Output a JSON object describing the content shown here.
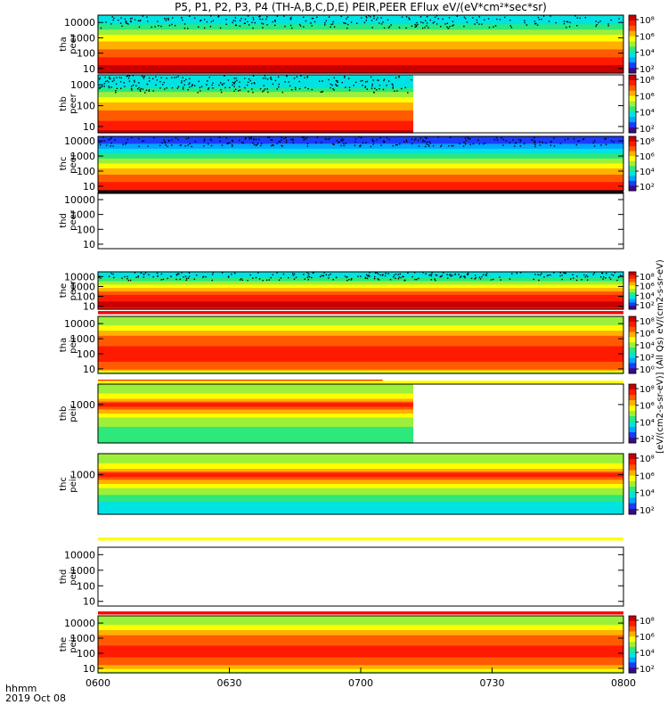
{
  "title": "P5, P1, P2, P3, P4 (TH-A,B,C,D,E) PEIR,PEER EFlux eV/(eV*cm²*sec*sr)",
  "footer": {
    "time_format": "hhmm",
    "date": "2019 Oct 08"
  },
  "colorbar_label": "[eV/(cm2-s-sr-eV)] (All Qs) eV/(cm2-s-sr-eV)",
  "colormap": [
    "#3b0a8a",
    "#1a3cff",
    "#00a6ff",
    "#00e3e3",
    "#2de87a",
    "#9cf03a",
    "#ffff00",
    "#ffb000",
    "#ff5a00",
    "#ff1a00",
    "#c80000"
  ],
  "chart_data": [
    {
      "type": "heatmap",
      "panel": "tha-peer",
      "ylabel": [
        "tha",
        "peer"
      ],
      "x_range": [
        "0600",
        "0800"
      ],
      "ylim": [
        5,
        30000
      ],
      "yscale": "log",
      "data_end": "0800",
      "yticks": [
        "10000",
        "1000",
        "100",
        "10"
      ],
      "cbar_ticks": [
        "10^8",
        "10^6",
        "10^4",
        "10^2"
      ],
      "color_by_level": [
        [
          "10000",
          3
        ],
        [
          "1000",
          6
        ],
        [
          "100",
          8
        ],
        [
          "10",
          10
        ],
        [
          "5",
          10
        ]
      ]
    },
    {
      "type": "heatmap",
      "panel": "thb-peer",
      "ylabel": [
        "thb",
        "peer"
      ],
      "x_range": [
        "0600",
        "0800"
      ],
      "ylim": [
        5,
        3000
      ],
      "yscale": "log",
      "data_end": "0712",
      "yticks": [
        "1000",
        "100",
        "10"
      ],
      "cbar_ticks": [
        "10^8",
        "10^6",
        "10^4",
        "10^2"
      ],
      "color_by_level": [
        [
          "1000",
          3
        ],
        [
          "100",
          7
        ],
        [
          "10",
          9
        ],
        [
          "5",
          10
        ]
      ]
    },
    {
      "type": "heatmap",
      "panel": "thc-peer",
      "ylabel": [
        "thc",
        "peer"
      ],
      "x_range": [
        "0600",
        "0800"
      ],
      "ylim": [
        5,
        20000
      ],
      "yscale": "log",
      "data_end": "0800",
      "yticks": [
        "10000",
        "1000",
        "100",
        "10"
      ],
      "cbar_ticks": [
        "10^8",
        "10^6",
        "10^4",
        "10^2"
      ],
      "color_by_level": [
        [
          "10000",
          1
        ],
        [
          "1000",
          4
        ],
        [
          "100",
          7
        ],
        [
          "10",
          9
        ],
        [
          "5",
          9
        ]
      ]
    },
    {
      "type": "heatmap",
      "panel": "thd-peer",
      "ylabel": [
        "thd",
        "peer"
      ],
      "x_range": [
        "0600",
        "0800"
      ],
      "ylim": [
        5,
        30000
      ],
      "yscale": "log",
      "data_end": "0600",
      "yticks": [
        "10000",
        "1000",
        "100",
        "10"
      ],
      "cbar_ticks": [],
      "color_by_level": []
    },
    {
      "type": "heatmap",
      "panel": "the-peer",
      "ylabel": [
        "the",
        "peer"
      ],
      "x_range": [
        "0600",
        "0800"
      ],
      "ylim": [
        5,
        30000
      ],
      "yscale": "log",
      "data_end": "0800",
      "yticks": [
        "10000",
        "1000",
        "100",
        "10"
      ],
      "cbar_ticks": [
        "10^8",
        "10^6",
        "10^4",
        "10^2"
      ],
      "color_by_level": [
        [
          "10000",
          3
        ],
        [
          "1000",
          6
        ],
        [
          "100",
          9
        ],
        [
          "10",
          10
        ],
        [
          "5",
          9
        ]
      ]
    },
    {
      "type": "heatmap",
      "panel": "tha-peir",
      "ylabel": [
        "tha",
        "peir"
      ],
      "x_range": [
        "0600",
        "0800"
      ],
      "ylim": [
        5,
        30000
      ],
      "yscale": "log",
      "data_end": "0800",
      "yticks": [
        "10000",
        "1000",
        "100",
        "10"
      ],
      "cbar_ticks": [
        "10^8",
        "10^6",
        "10^4",
        "10^2",
        "10^0"
      ],
      "color_by_level": [
        [
          "10000",
          5
        ],
        [
          "1000",
          8
        ],
        [
          "100",
          9
        ],
        [
          "10",
          8
        ],
        [
          "5",
          5
        ]
      ]
    },
    {
      "type": "heatmap",
      "panel": "thb-peir",
      "ylabel": [
        "thb",
        "peir"
      ],
      "x_range": [
        "0600",
        "0800"
      ],
      "ylim": [
        20,
        8000
      ],
      "yscale": "log",
      "data_end": "0712",
      "yticks": [
        "1000"
      ],
      "cbar_ticks": [
        "10^8",
        "10^6",
        "10^4",
        "10^2"
      ],
      "color_by_level": [
        [
          "5000",
          5
        ],
        [
          "2000",
          6
        ],
        [
          "1000",
          9
        ],
        [
          "500",
          7
        ],
        [
          "200",
          5
        ],
        [
          "50",
          4
        ]
      ]
    },
    {
      "type": "heatmap",
      "panel": "thc-peir",
      "ylabel": [
        "thc",
        "peir"
      ],
      "x_range": [
        "0600",
        "0800"
      ],
      "ylim": [
        20,
        8000
      ],
      "yscale": "log",
      "data_end": "0800",
      "yticks": [
        "1000"
      ],
      "cbar_ticks": [
        "10^8",
        "10^6",
        "10^4",
        "10^2"
      ],
      "color_by_level": [
        [
          "5000",
          5
        ],
        [
          "2000",
          6
        ],
        [
          "1000",
          9
        ],
        [
          "500",
          7
        ],
        [
          "200",
          5
        ],
        [
          "50",
          3
        ]
      ]
    },
    {
      "type": "heatmap",
      "panel": "thd-peir",
      "ylabel": [
        "thd",
        "peir"
      ],
      "x_range": [
        "0600",
        "0800"
      ],
      "ylim": [
        5,
        30000
      ],
      "yscale": "log",
      "data_end": "0600",
      "yticks": [
        "10000",
        "1000",
        "100",
        "10"
      ],
      "cbar_ticks": [],
      "color_by_level": []
    },
    {
      "type": "heatmap",
      "panel": "the-peir",
      "ylabel": [
        "the",
        "peir"
      ],
      "x_range": [
        "0600",
        "0800"
      ],
      "ylim": [
        5,
        30000
      ],
      "yscale": "log",
      "data_end": "0800",
      "yticks": [
        "10000",
        "1000",
        "100",
        "10"
      ],
      "cbar_ticks": [
        "10^8",
        "10^6",
        "10^4",
        "10^2"
      ],
      "color_by_level": [
        [
          "10000",
          5
        ],
        [
          "1000",
          8
        ],
        [
          "100",
          9
        ],
        [
          "10",
          7
        ],
        [
          "5",
          5
        ]
      ]
    }
  ],
  "status_bars": [
    {
      "after": "thc-peer",
      "color": "#000000",
      "end": "0800"
    },
    {
      "after": "the-peer",
      "color": "#ff0000",
      "end": "0800"
    },
    {
      "after": "tha-peir",
      "color": "#ff0000",
      "end": "0705"
    },
    {
      "after": "tha-peir",
      "color": "#ffff00",
      "end": "0800"
    },
    {
      "after": "thc-peir",
      "color": "#ffff00",
      "end": "0800"
    },
    {
      "after": "thd-peir",
      "color": "#ff0000",
      "end": "0800"
    }
  ],
  "x_axis": {
    "ticks": [
      "0600",
      "0630",
      "0700",
      "0730",
      "0800"
    ]
  }
}
